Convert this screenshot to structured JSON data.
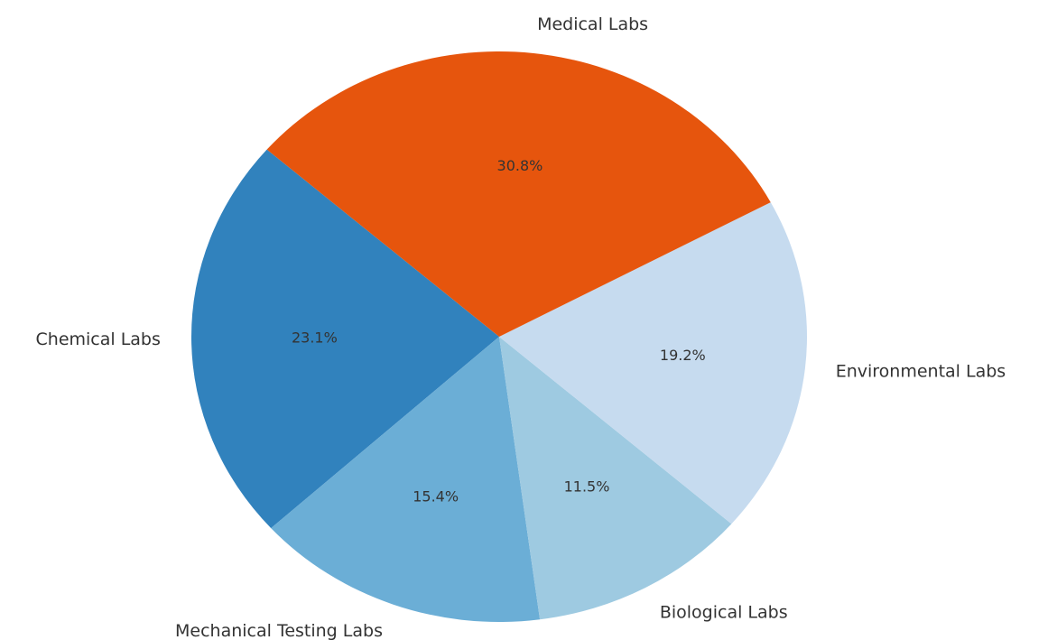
{
  "chart_data": {
    "type": "pie",
    "categories": [
      "Chemical Labs",
      "Mechanical Testing Labs",
      "Biological Labs",
      "Environmental Labs",
      "Medical Labs"
    ],
    "values": [
      23.1,
      15.4,
      11.5,
      19.2,
      30.8
    ],
    "value_labels": [
      "23.1%",
      "15.4%",
      "11.5%",
      "19.2%",
      "30.8%"
    ],
    "colors": [
      "#3182bd",
      "#6baed6",
      "#9ecae1",
      "#c6dbef",
      "#e6550d"
    ]
  }
}
